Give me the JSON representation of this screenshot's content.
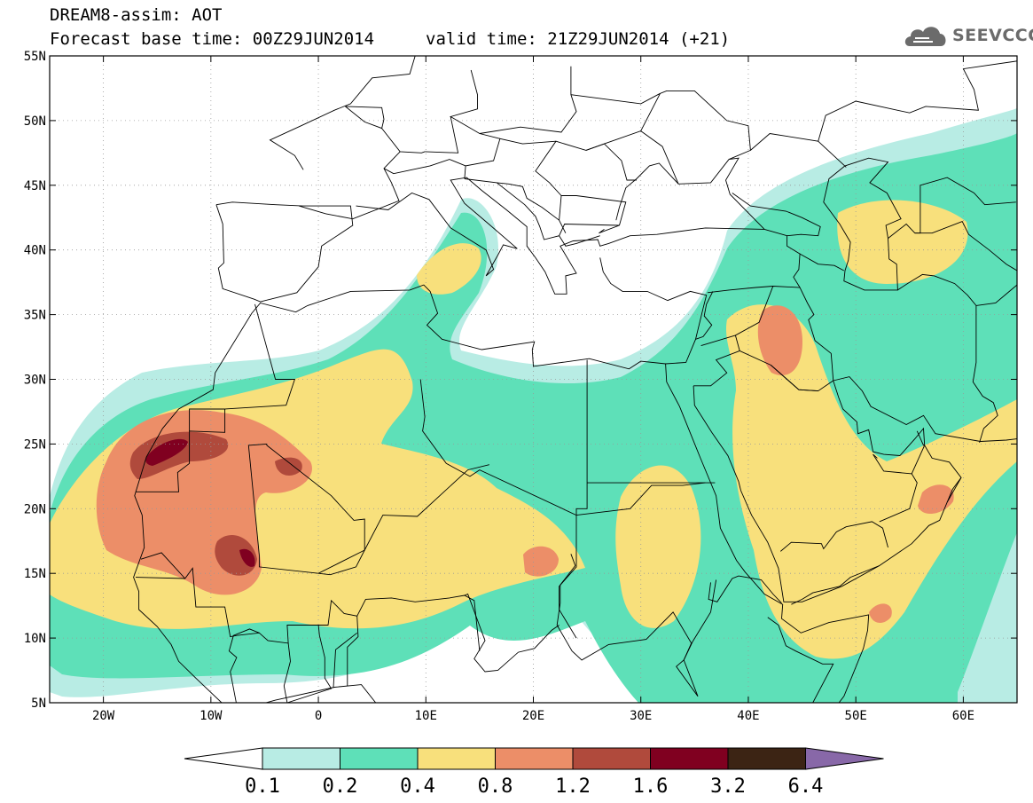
{
  "header": {
    "line1": "DREAM8-assim: AOT",
    "line2_base": "Forecast base time: 00Z29JUN2014",
    "line2_valid": "valid time: 21Z29JUN2014 (+21)"
  },
  "logo": {
    "text": "SEEVCCC",
    "icon": "cloud-icon"
  },
  "map": {
    "lon_range": [
      -25,
      65
    ],
    "lat_range": [
      5,
      55
    ],
    "x_ticks": [
      {
        "lon": -20,
        "label": "20W"
      },
      {
        "lon": -10,
        "label": "10W"
      },
      {
        "lon": 0,
        "label": "0"
      },
      {
        "lon": 10,
        "label": "10E"
      },
      {
        "lon": 20,
        "label": "20E"
      },
      {
        "lon": 30,
        "label": "30E"
      },
      {
        "lon": 40,
        "label": "40E"
      },
      {
        "lon": 50,
        "label": "50E"
      },
      {
        "lon": 60,
        "label": "60E"
      }
    ],
    "y_ticks": [
      {
        "lat": 55,
        "label": "55N"
      },
      {
        "lat": 50,
        "label": "50N"
      },
      {
        "lat": 45,
        "label": "45N"
      },
      {
        "lat": 40,
        "label": "40N"
      },
      {
        "lat": 35,
        "label": "35N"
      },
      {
        "lat": 30,
        "label": "30N"
      },
      {
        "lat": 25,
        "label": "25N"
      },
      {
        "lat": 20,
        "label": "20N"
      },
      {
        "lat": 15,
        "label": "15N"
      },
      {
        "lat": 10,
        "label": "10N"
      },
      {
        "lat": 5,
        "label": "5N"
      }
    ],
    "grid": "dotted"
  },
  "colorbar": {
    "colors": [
      "#ffffff",
      "#b8ece4",
      "#5ee0b8",
      "#f8e07c",
      "#ec8e68",
      "#b04a3c",
      "#800020",
      "#3c2414",
      "#8868a8"
    ],
    "labels": [
      "0.1",
      "0.2",
      "0.4",
      "0.8",
      "1.2",
      "1.6",
      "3.2",
      "6.4"
    ]
  }
}
